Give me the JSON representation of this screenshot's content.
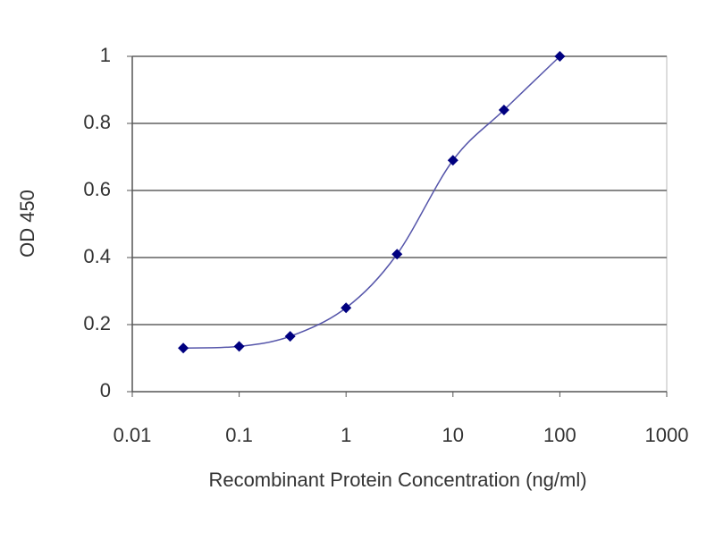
{
  "chart_data": {
    "type": "line",
    "x_label": "Recombinant Protein Concentration (ng/ml)",
    "y_label": "OD 450",
    "x": [
      0.03,
      0.1,
      0.3,
      1,
      3,
      10,
      30,
      100
    ],
    "series": [
      {
        "color": "#000080",
        "values": [
          0.13,
          0.135,
          0.165,
          0.25,
          0.41,
          0.69,
          0.84,
          1.0
        ]
      }
    ],
    "xlim": [
      0.01,
      1000
    ],
    "xticks": [
      0.01,
      0.1,
      1,
      10,
      100,
      1000
    ],
    "x_log": true,
    "ylim": [
      0,
      1
    ],
    "yticks": [
      0,
      0.2,
      0.4,
      0.6,
      0.8,
      1
    ],
    "grid": true
  }
}
